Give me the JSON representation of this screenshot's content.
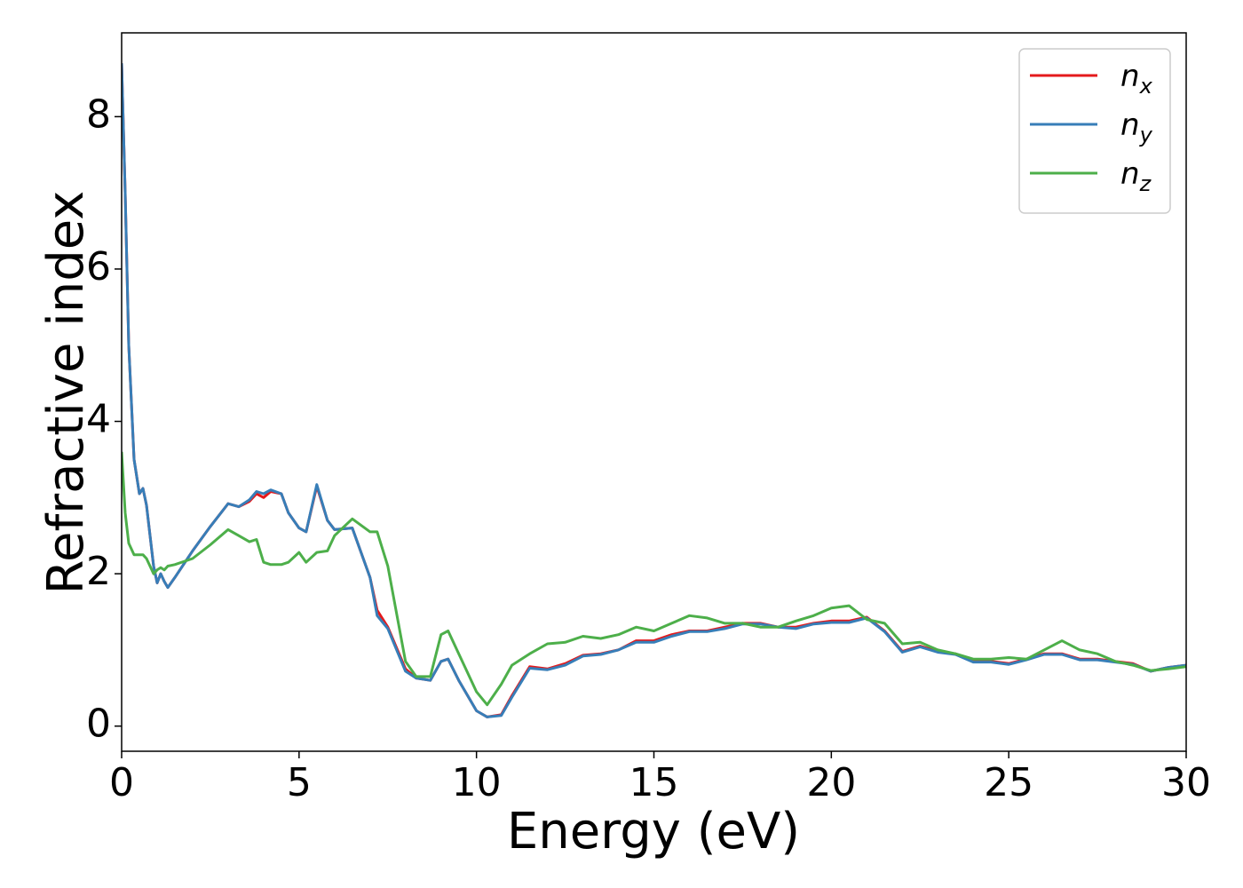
{
  "chart_data": {
    "type": "line",
    "xlabel": "Energy (eV)",
    "ylabel": "Refractive index",
    "xlim": [
      0,
      30
    ],
    "ylim": [
      -0.33,
      9.1
    ],
    "xticks": [
      0,
      5,
      10,
      15,
      20,
      25,
      30
    ],
    "yticks": [
      0,
      2,
      4,
      6,
      8
    ],
    "grid": false,
    "legend": "upper right",
    "x": [
      0,
      0.1,
      0.2,
      0.35,
      0.5,
      0.6,
      0.7,
      0.9,
      1.0,
      1.1,
      1.2,
      1.3,
      1.5,
      2,
      2.5,
      3,
      3.3,
      3.6,
      3.8,
      4.0,
      4.2,
      4.5,
      4.7,
      5.0,
      5.2,
      5.5,
      5.8,
      6.0,
      6.5,
      7.0,
      7.2,
      7.5,
      8.0,
      8.3,
      8.7,
      9.0,
      9.2,
      9.5,
      10.0,
      10.3,
      10.7,
      11,
      11.5,
      12,
      12.5,
      13,
      13.5,
      14,
      14.5,
      15,
      15.5,
      16,
      16.5,
      17,
      17.5,
      18,
      18.5,
      19,
      19.5,
      20,
      20.5,
      21,
      21.5,
      22,
      22.5,
      23,
      23.5,
      24,
      24.5,
      25,
      25.5,
      26,
      26.5,
      27,
      27.5,
      28,
      28.5,
      29,
      29.5,
      30
    ],
    "series": [
      {
        "name": "nx",
        "color": "#e41a1c",
        "values": [
          8.7,
          7.0,
          5.0,
          3.5,
          3.05,
          3.12,
          2.9,
          2.1,
          1.88,
          2.0,
          1.9,
          1.82,
          1.95,
          2.3,
          2.62,
          2.92,
          2.88,
          2.95,
          3.05,
          3.0,
          3.08,
          3.05,
          2.8,
          2.6,
          2.55,
          3.15,
          2.7,
          2.58,
          2.6,
          1.95,
          1.52,
          1.3,
          0.75,
          0.63,
          0.6,
          0.85,
          0.88,
          0.6,
          0.2,
          0.12,
          0.15,
          0.4,
          0.78,
          0.75,
          0.82,
          0.93,
          0.95,
          1.0,
          1.12,
          1.12,
          1.2,
          1.25,
          1.25,
          1.3,
          1.35,
          1.35,
          1.3,
          1.3,
          1.35,
          1.38,
          1.38,
          1.43,
          1.25,
          0.98,
          1.05,
          0.98,
          0.95,
          0.85,
          0.85,
          0.82,
          0.88,
          0.95,
          0.95,
          0.88,
          0.88,
          0.85,
          0.82,
          0.72,
          0.77,
          0.8
        ]
      },
      {
        "name": "ny",
        "color": "#377eb8",
        "values": [
          8.7,
          7.0,
          5.0,
          3.5,
          3.05,
          3.12,
          2.9,
          2.1,
          1.88,
          2.0,
          1.9,
          1.82,
          1.95,
          2.3,
          2.62,
          2.92,
          2.88,
          2.97,
          3.08,
          3.05,
          3.1,
          3.05,
          2.8,
          2.6,
          2.55,
          3.17,
          2.7,
          2.58,
          2.6,
          1.95,
          1.45,
          1.28,
          0.72,
          0.63,
          0.6,
          0.85,
          0.88,
          0.6,
          0.2,
          0.12,
          0.14,
          0.38,
          0.76,
          0.74,
          0.8,
          0.92,
          0.94,
          1.0,
          1.1,
          1.1,
          1.18,
          1.24,
          1.24,
          1.28,
          1.34,
          1.34,
          1.3,
          1.28,
          1.34,
          1.36,
          1.36,
          1.42,
          1.24,
          0.97,
          1.04,
          0.97,
          0.94,
          0.84,
          0.84,
          0.81,
          0.87,
          0.94,
          0.94,
          0.87,
          0.87,
          0.84,
          0.81,
          0.72,
          0.77,
          0.8
        ]
      },
      {
        "name": "nz",
        "color": "#4daf4a",
        "values": [
          3.6,
          2.8,
          2.4,
          2.25,
          2.25,
          2.25,
          2.2,
          2.0,
          2.05,
          2.08,
          2.05,
          2.1,
          2.12,
          2.2,
          2.38,
          2.58,
          2.5,
          2.42,
          2.45,
          2.15,
          2.12,
          2.12,
          2.15,
          2.28,
          2.15,
          2.28,
          2.3,
          2.5,
          2.72,
          2.55,
          2.55,
          2.1,
          0.85,
          0.65,
          0.65,
          1.2,
          1.25,
          0.95,
          0.45,
          0.28,
          0.55,
          0.8,
          0.95,
          1.08,
          1.1,
          1.18,
          1.15,
          1.2,
          1.3,
          1.25,
          1.35,
          1.45,
          1.42,
          1.35,
          1.35,
          1.3,
          1.3,
          1.38,
          1.45,
          1.55,
          1.58,
          1.4,
          1.35,
          1.08,
          1.1,
          1.0,
          0.95,
          0.88,
          0.88,
          0.9,
          0.88,
          1.0,
          1.12,
          1.0,
          0.95,
          0.85,
          0.8,
          0.73,
          0.75,
          0.78
        ]
      }
    ]
  }
}
